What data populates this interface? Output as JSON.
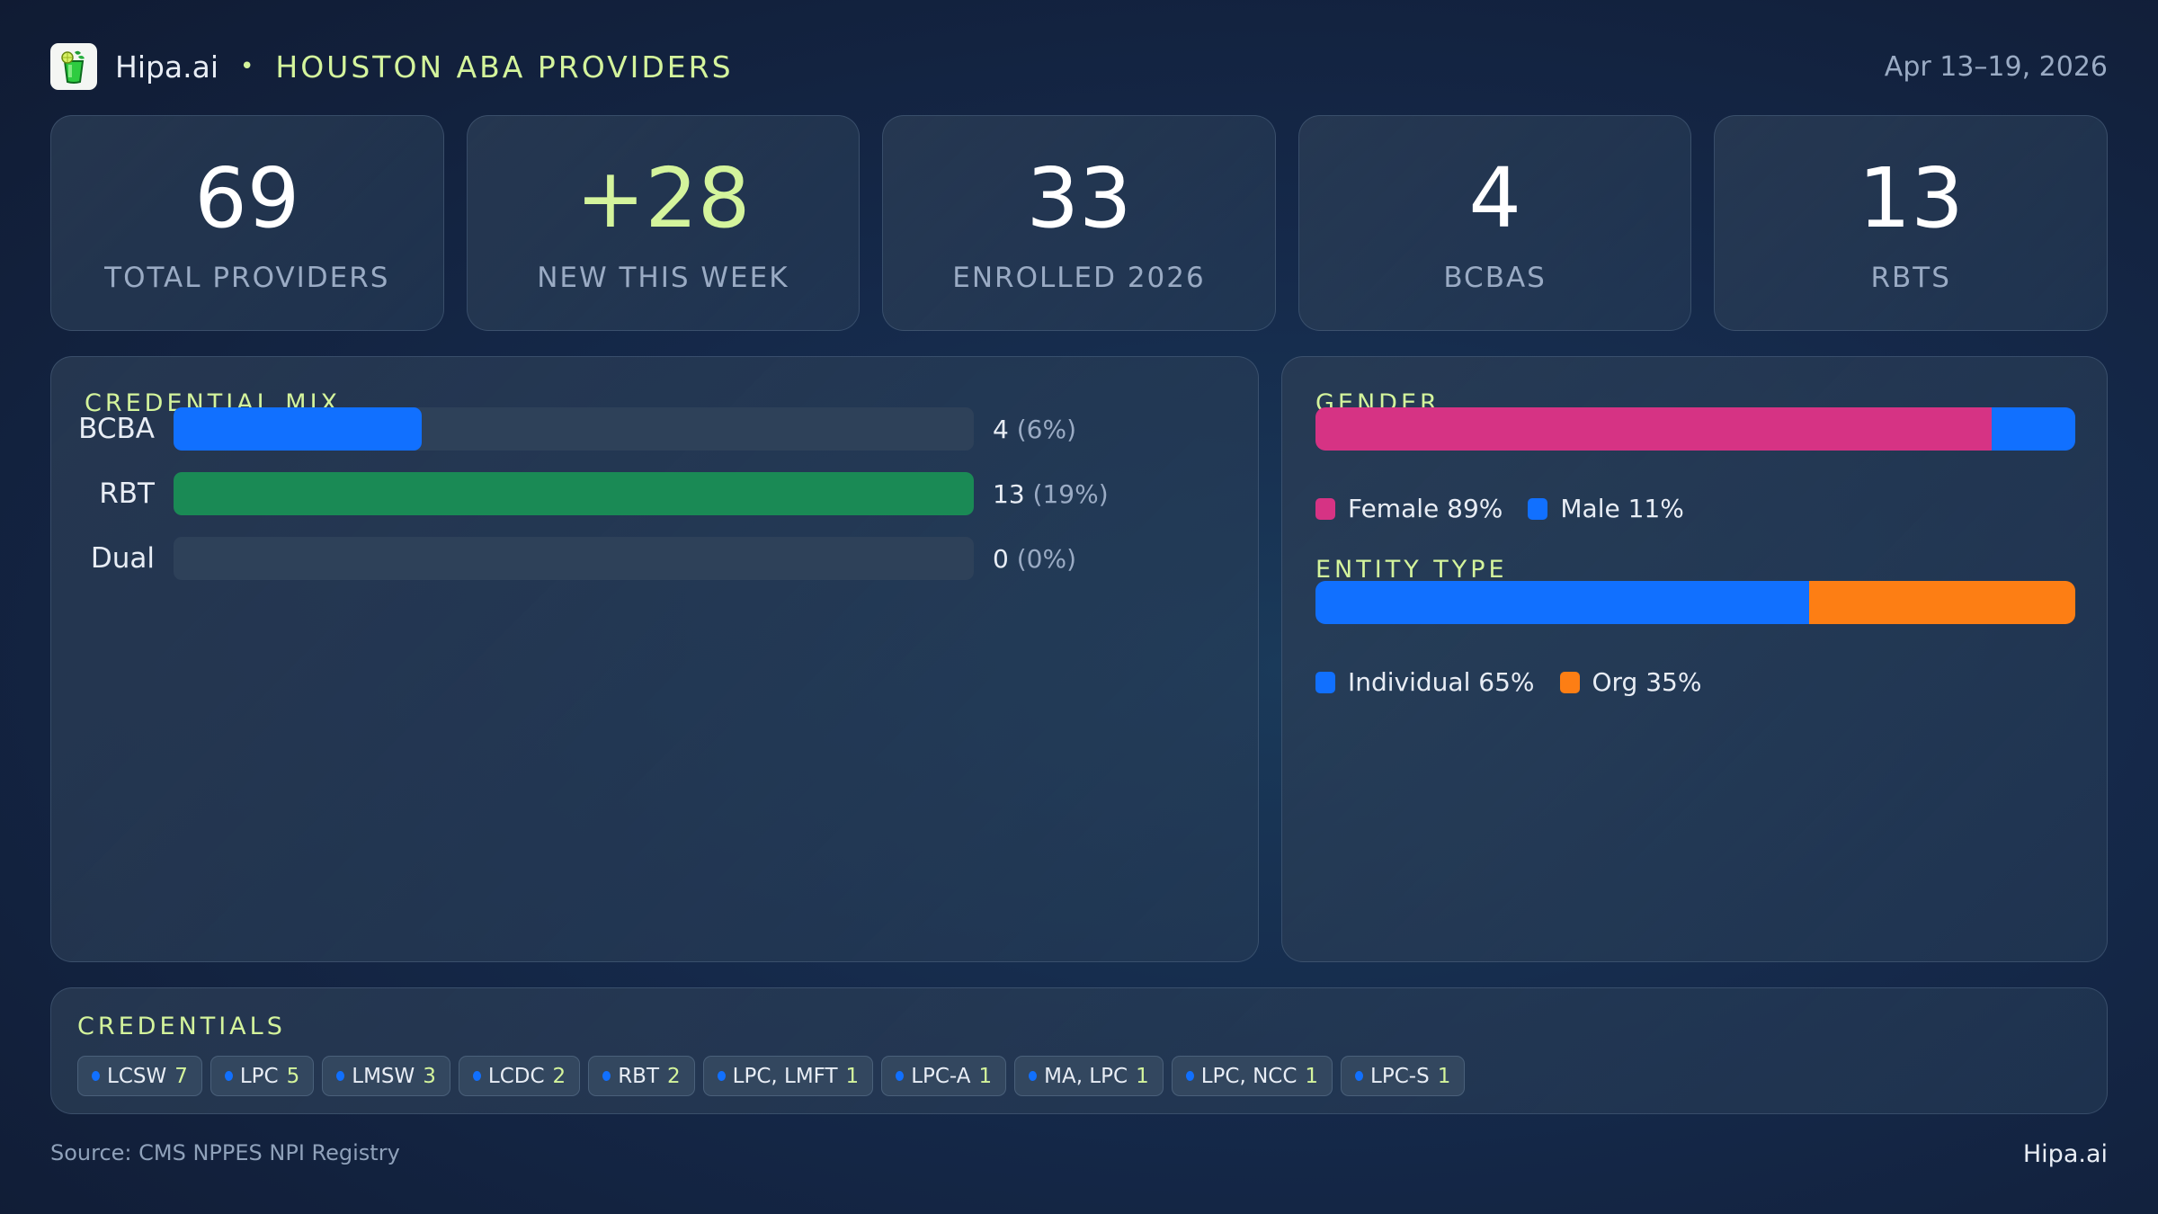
{
  "header": {
    "logo_icon": "mojito-glass-icon",
    "brand": "Hipa.ai",
    "separator": "•",
    "title": "HOUSTON ABA PROVIDERS",
    "date_range": "Apr 13–19, 2026"
  },
  "stats": [
    {
      "value": "69",
      "label": "TOTAL PROVIDERS",
      "accent": false
    },
    {
      "value": "+28",
      "label": "NEW THIS WEEK",
      "accent": true
    },
    {
      "value": "33",
      "label": "ENROLLED 2026",
      "accent": false
    },
    {
      "value": "4",
      "label": "BCBAS",
      "accent": false
    },
    {
      "value": "13",
      "label": "RBTS",
      "accent": false
    }
  ],
  "credential_mix": {
    "title": "CREDENTIAL MIX",
    "rows": [
      {
        "label": "BCBA",
        "count": "4",
        "pct": "(6%)",
        "fill_pct": 31,
        "color": "#1170ff"
      },
      {
        "label": "RBT",
        "count": "13",
        "pct": "(19%)",
        "fill_pct": 100,
        "color": "#1a8a55"
      },
      {
        "label": "Dual",
        "count": "0",
        "pct": "(0%)",
        "fill_pct": 0,
        "color": "#2e4159"
      }
    ]
  },
  "gender": {
    "title": "GENDER",
    "segments": [
      {
        "label": "Female 89%",
        "pct": 89,
        "color": "#d63384"
      },
      {
        "label": "Male 11%",
        "pct": 11,
        "color": "#1170ff"
      }
    ]
  },
  "entity_type": {
    "title": "ENTITY TYPE",
    "segments": [
      {
        "label": "Individual 65%",
        "pct": 65,
        "color": "#1170ff"
      },
      {
        "label": "Org 35%",
        "pct": 35,
        "color": "#fd7e14"
      }
    ]
  },
  "credentials": {
    "title": "CREDENTIALS",
    "chips": [
      {
        "name": "LCSW",
        "count": "7"
      },
      {
        "name": "LPC",
        "count": "5"
      },
      {
        "name": "LMSW",
        "count": "3"
      },
      {
        "name": "LCDC",
        "count": "2"
      },
      {
        "name": "RBT",
        "count": "2"
      },
      {
        "name": "LPC, LMFT",
        "count": "1"
      },
      {
        "name": "LPC-A",
        "count": "1"
      },
      {
        "name": "MA, LPC",
        "count": "1"
      },
      {
        "name": "LPC, NCC",
        "count": "1"
      },
      {
        "name": "LPC-S",
        "count": "1"
      }
    ]
  },
  "footer": {
    "source": "Source: CMS NPPES NPI Registry",
    "brand": "Hipa.ai"
  },
  "colors": {
    "accent_lime": "#d4f49c",
    "blue": "#1170ff",
    "green": "#1a8a55",
    "pink": "#d63384",
    "orange": "#fd7e14"
  }
}
